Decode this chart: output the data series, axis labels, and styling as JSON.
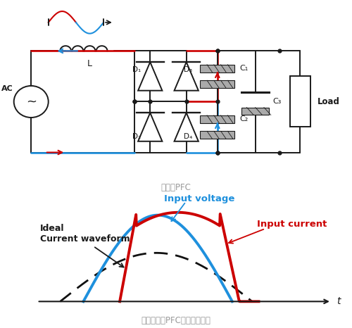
{
  "bg_color": "#ffffff",
  "circuit_label": "被动式PFC",
  "waveform_label": "使用被动式PFC后的电流波形",
  "label_input_voltage": "Input voltage",
  "label_input_current": "Input current",
  "label_ideal": "Ideal\nCurrent waveform",
  "color_red": "#cc0000",
  "color_blue": "#1e90dd",
  "color_black": "#1a1a1a",
  "color_dashed": "#222222",
  "color_gray_text": "#999999",
  "t_axis_label": "t"
}
